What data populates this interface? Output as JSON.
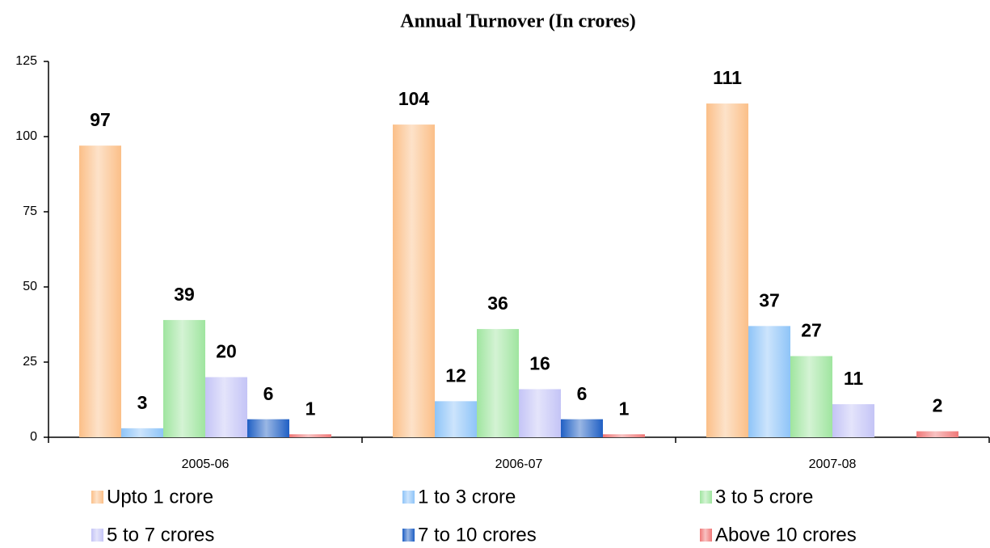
{
  "chart_data": {
    "type": "bar",
    "title": "Annual Turnover (In crores)",
    "categories": [
      "2005-06",
      "2006-07",
      "2007-08"
    ],
    "series": [
      {
        "name": "Upto 1 crore",
        "color": "#fbbf88",
        "values": [
          97,
          104,
          111
        ]
      },
      {
        "name": "1 to 3 crore",
        "color": "#8ec4f8",
        "values": [
          3,
          12,
          37
        ]
      },
      {
        "name": "3 to 5 crore",
        "color": "#9fe59f",
        "values": [
          39,
          36,
          27
        ]
      },
      {
        "name": "5 to 7 crores",
        "color": "#c4c4f6",
        "values": [
          20,
          16,
          11
        ]
      },
      {
        "name": "7 to 10 crores",
        "color": "#1f5fc4",
        "values": [
          6,
          6,
          null
        ]
      },
      {
        "name": "Above 10 crores",
        "color": "#f07878",
        "values": [
          1,
          1,
          2
        ]
      }
    ],
    "ylim": [
      0,
      125
    ],
    "yticks": [
      0,
      25,
      50,
      75,
      100,
      125
    ],
    "legend": "bottom"
  }
}
